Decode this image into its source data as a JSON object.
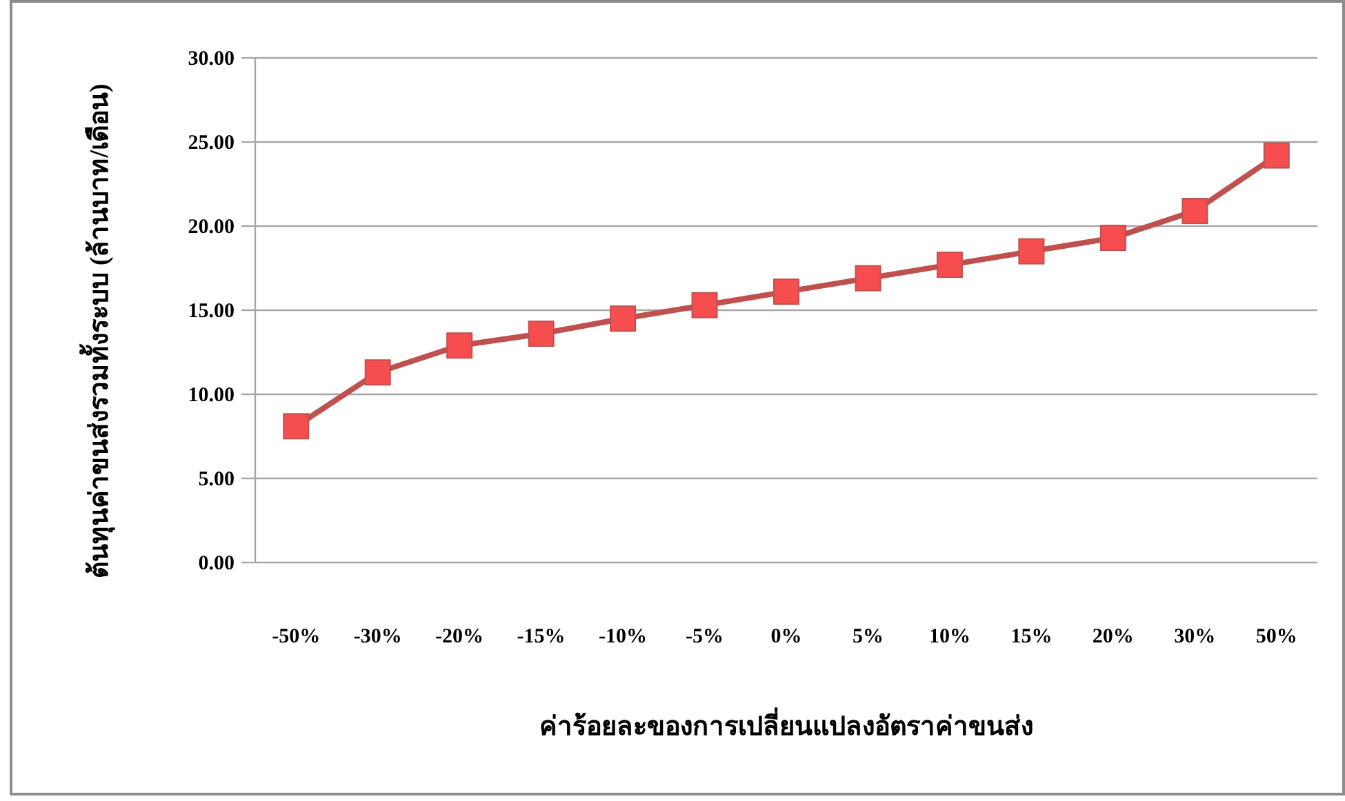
{
  "chart_data": {
    "type": "line",
    "xlabel": "ค่าร้อยละของการเปลี่ยนแปลงอัตราค่าขนส่ง",
    "ylabel": "ต้นทุนค่าขนส่งรวมทั้งระบบ (ล้านบาท/เดือน)",
    "categories": [
      "-50%",
      "-30%",
      "-20%",
      "-15%",
      "-10%",
      "-5%",
      "0%",
      "5%",
      "10%",
      "15%",
      "20%",
      "30%",
      "50%"
    ],
    "series": [
      {
        "color": "#c0504d",
        "values": [
          8.1,
          11.3,
          12.9,
          13.6,
          14.5,
          15.3,
          16.1,
          16.9,
          17.7,
          18.5,
          19.3,
          20.9,
          24.2
        ]
      }
    ],
    "ylim": [
      0,
      30
    ],
    "yticks": [
      {
        "value": 0,
        "label": "0.00"
      },
      {
        "value": 5,
        "label": "5.00"
      },
      {
        "value": 10,
        "label": "10.00"
      },
      {
        "value": 15,
        "label": "15.00"
      },
      {
        "value": 20,
        "label": "20.00"
      },
      {
        "value": 25,
        "label": "25.00"
      },
      {
        "value": 30,
        "label": "30.00"
      }
    ],
    "grid": "y",
    "marker": "square",
    "line_style": "solid"
  }
}
